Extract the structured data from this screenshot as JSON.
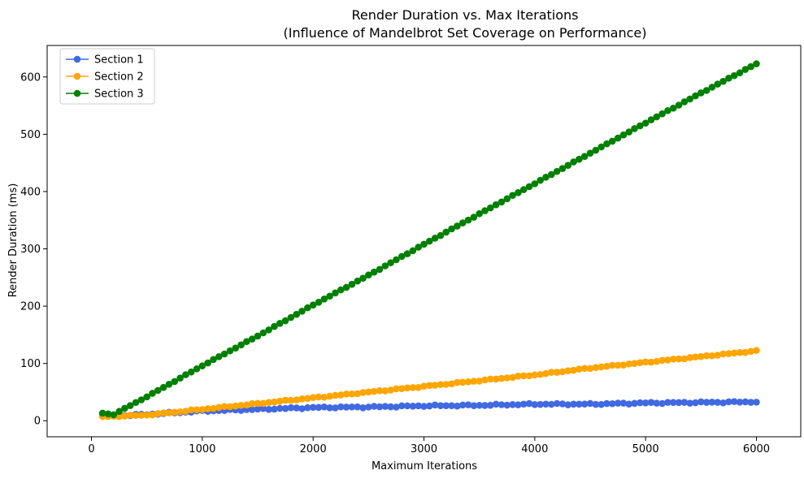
{
  "chart_data": {
    "type": "line",
    "title": "Render Duration vs. Max Iterations",
    "subtitle": "(Influence of Mandelbrot Set Coverage on Performance)",
    "xlabel": "Maximum Iterations",
    "ylabel": "Render Duration (ms)",
    "xlim": [
      -400,
      6400
    ],
    "ylim": [
      -28,
      655
    ],
    "xticks": [
      0,
      1000,
      2000,
      3000,
      4000,
      5000,
      6000
    ],
    "yticks": [
      0,
      100,
      200,
      300,
      400,
      500,
      600
    ],
    "grid": false,
    "legend_position": "top-left",
    "x_range": {
      "start": 100,
      "end": 6000,
      "step": 50
    },
    "series": [
      {
        "name": "Section 1",
        "color": "#4169e1",
        "marker": "circle",
        "anchors": [
          [
            100,
            8
          ],
          [
            500,
            11
          ],
          [
            1000,
            17
          ],
          [
            1500,
            20
          ],
          [
            2000,
            23
          ],
          [
            2500,
            24
          ],
          [
            3000,
            26
          ],
          [
            3500,
            27
          ],
          [
            4000,
            29
          ],
          [
            4500,
            29
          ],
          [
            5000,
            31
          ],
          [
            5500,
            32
          ],
          [
            6000,
            33
          ]
        ]
      },
      {
        "name": "Section 2",
        "color": "#ffa500",
        "marker": "circle",
        "anchors": [
          [
            100,
            7
          ],
          [
            500,
            10
          ],
          [
            1000,
            20
          ],
          [
            1500,
            30
          ],
          [
            2000,
            40
          ],
          [
            2500,
            50
          ],
          [
            3000,
            60
          ],
          [
            3500,
            70
          ],
          [
            4000,
            80
          ],
          [
            4500,
            92
          ],
          [
            5000,
            102
          ],
          [
            5500,
            112
          ],
          [
            6000,
            122
          ]
        ]
      },
      {
        "name": "Section 3",
        "color": "#008000",
        "marker": "circle",
        "anchors": [
          [
            100,
            13
          ],
          [
            200,
            11
          ],
          [
            500,
            42
          ],
          [
            1000,
            96
          ],
          [
            1500,
            148
          ],
          [
            2000,
            202
          ],
          [
            2500,
            254
          ],
          [
            3000,
            308
          ],
          [
            3500,
            361
          ],
          [
            4000,
            414
          ],
          [
            4500,
            467
          ],
          [
            5000,
            520
          ],
          [
            5500,
            572
          ],
          [
            6000,
            623
          ]
        ]
      }
    ]
  }
}
